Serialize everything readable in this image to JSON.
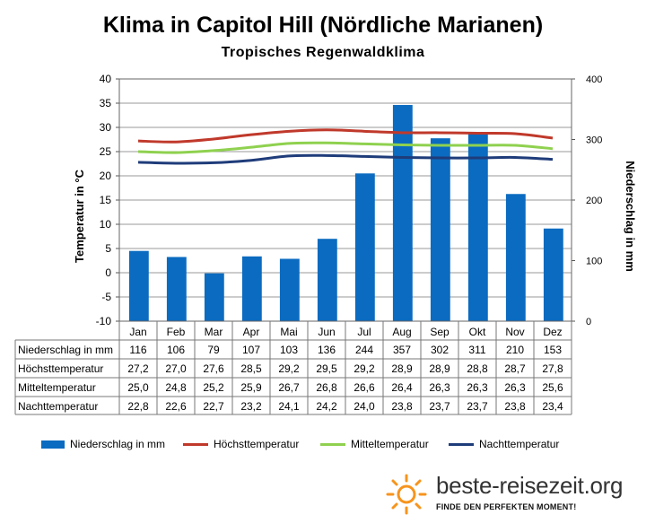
{
  "title": "Klima in Capitol Hill (Nördliche Marianen)",
  "subtitle": "Tropisches Regenwaldklima",
  "brand": {
    "name": "beste-reisezeit.org",
    "tagline": "FINDE DEN PERFEKTEN MOMENT!",
    "icon": "sun-icon",
    "icon_color": "#f7941d"
  },
  "chart_data": {
    "type": "bar",
    "categories": [
      "Jan",
      "Feb",
      "Mar",
      "Apr",
      "Mai",
      "Jun",
      "Jul",
      "Aug",
      "Sep",
      "Okt",
      "Nov",
      "Dez"
    ],
    "ylabel_left": "Temperatur in °C",
    "ylabel_right": "Niederschlag in mm",
    "ylim_left": [
      -10,
      40
    ],
    "ylim_right": [
      0,
      400
    ],
    "yticks_left": [
      -10,
      -5,
      0,
      5,
      10,
      15,
      20,
      25,
      30,
      35,
      40
    ],
    "yticks_right": [
      0,
      100,
      200,
      300,
      400
    ],
    "grid": true,
    "legend_position": "bottom",
    "series": [
      {
        "name": "Niederschlag in mm",
        "type": "bar",
        "axis": "right",
        "color": "#0b6bc0",
        "values": [
          116,
          106,
          79,
          107,
          103,
          136,
          244,
          357,
          302,
          311,
          210,
          153
        ]
      },
      {
        "name": "Höchsttemperatur",
        "type": "line",
        "axis": "left",
        "color": "#c0392b",
        "values": [
          27.2,
          27.0,
          27.6,
          28.5,
          29.2,
          29.5,
          29.2,
          28.9,
          28.9,
          28.8,
          28.7,
          27.8
        ]
      },
      {
        "name": "Mitteltemperatur",
        "type": "line",
        "axis": "left",
        "color": "#8fd14f",
        "values": [
          25.0,
          24.8,
          25.2,
          25.9,
          26.7,
          26.8,
          26.6,
          26.4,
          26.3,
          26.3,
          26.3,
          25.6
        ]
      },
      {
        "name": "Nachttemperatur",
        "type": "line",
        "axis": "left",
        "color": "#1f3c7a",
        "values": [
          22.8,
          22.6,
          22.7,
          23.2,
          24.1,
          24.2,
          24.0,
          23.8,
          23.7,
          23.7,
          23.8,
          23.4
        ]
      }
    ],
    "table_rows": [
      {
        "label": "Niederschlag in mm",
        "values": [
          "116",
          "106",
          "79",
          "107",
          "103",
          "136",
          "244",
          "357",
          "302",
          "311",
          "210",
          "153"
        ]
      },
      {
        "label": "Höchsttemperatur",
        "values": [
          "27,2",
          "27,0",
          "27,6",
          "28,5",
          "29,2",
          "29,5",
          "29,2",
          "28,9",
          "28,9",
          "28,8",
          "28,7",
          "27,8"
        ]
      },
      {
        "label": "Mitteltemperatur",
        "values": [
          "25,0",
          "24,8",
          "25,2",
          "25,9",
          "26,7",
          "26,8",
          "26,6",
          "26,4",
          "26,3",
          "26,3",
          "26,3",
          "25,6"
        ]
      },
      {
        "label": "Nachttemperatur",
        "values": [
          "22,8",
          "22,6",
          "22,7",
          "23,2",
          "24,1",
          "24,2",
          "24,0",
          "23,8",
          "23,7",
          "23,7",
          "23,8",
          "23,4"
        ]
      }
    ]
  }
}
